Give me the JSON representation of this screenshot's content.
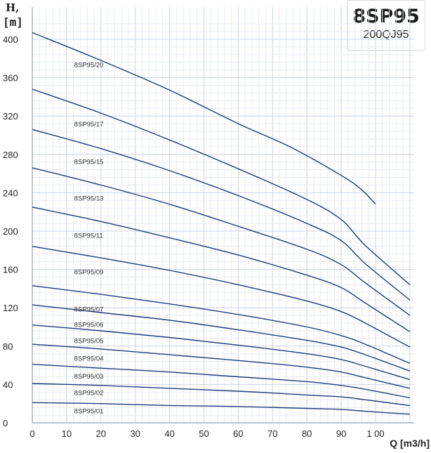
{
  "chart_data": {
    "type": "line",
    "title": "8SP95",
    "subtitle": "200QJ95",
    "ylabel_line1": "H,",
    "ylabel_line2": "[m]",
    "xlabel": "Q [m3/h]",
    "xlim": [
      0,
      110
    ],
    "ylim": [
      0,
      420
    ],
    "xticks": [
      0,
      10,
      20,
      30,
      40,
      50,
      60,
      70,
      80,
      90,
      100
    ],
    "xtick_labels": [
      "0",
      "10",
      "20",
      "30",
      "40",
      "50",
      "60",
      "70",
      "80",
      "90",
      "1 00"
    ],
    "yticks": [
      0,
      40,
      80,
      120,
      160,
      200,
      240,
      280,
      320,
      360,
      400
    ],
    "ytick_labels": [
      "0",
      "40",
      "80",
      "120",
      "160",
      "200",
      "240",
      "280",
      "320",
      "360",
      "400"
    ],
    "grid": true,
    "line_color": "#1f3c78",
    "series": [
      {
        "name": "8SP95/20",
        "x": [
          0,
          20,
          40,
          60,
          75,
          90,
          96,
          100
        ],
        "y": [
          407,
          378,
          347,
          312,
          288,
          258,
          243,
          228
        ],
        "label_at": [
          12,
          371
        ]
      },
      {
        "name": "8SP95/17",
        "x": [
          0,
          20,
          40,
          60,
          80,
          90,
          97,
          110
        ],
        "y": [
          348,
          323,
          295,
          265,
          233,
          212,
          185,
          144
        ],
        "label_at": [
          12,
          309
        ]
      },
      {
        "name": "8SP95/15",
        "x": [
          0,
          20,
          40,
          60,
          80,
          90,
          97,
          110
        ],
        "y": [
          306,
          286,
          263,
          237,
          208,
          190,
          166,
          128
        ],
        "label_at": [
          12,
          270
        ]
      },
      {
        "name": "8SP95/13",
        "x": [
          0,
          20,
          40,
          60,
          80,
          90,
          97,
          110
        ],
        "y": [
          266,
          248,
          228,
          205,
          181,
          165,
          146,
          112
        ],
        "label_at": [
          12,
          232
        ]
      },
      {
        "name": "8SP95/11",
        "x": [
          0,
          20,
          40,
          60,
          80,
          90,
          97,
          110
        ],
        "y": [
          225,
          210,
          193,
          175,
          154,
          141,
          125,
          95
        ],
        "label_at": [
          12,
          193
        ]
      },
      {
        "name": "8SP95/09",
        "x": [
          0,
          20,
          40,
          60,
          80,
          90,
          97,
          110
        ],
        "y": [
          184,
          172,
          159,
          144,
          127,
          116,
          104,
          79
        ],
        "label_at": [
          12,
          155
        ]
      },
      {
        "name": "8SP95/07",
        "x": [
          0,
          20,
          40,
          60,
          80,
          90,
          97,
          110
        ],
        "y": [
          143,
          134,
          124,
          113,
          100,
          91,
          82,
          62
        ],
        "label_at": [
          12,
          116
        ]
      },
      {
        "name": "8SP95/06",
        "x": [
          0,
          20,
          40,
          60,
          80,
          90,
          97,
          110
        ],
        "y": [
          123,
          115,
          107,
          97,
          86,
          79,
          71,
          54
        ],
        "label_at": [
          12,
          100
        ]
      },
      {
        "name": "8SP95/05",
        "x": [
          0,
          20,
          40,
          60,
          80,
          90,
          97,
          110
        ],
        "y": [
          102,
          96,
          89,
          81,
          72,
          66,
          59,
          45
        ],
        "label_at": [
          12,
          83
        ]
      },
      {
        "name": "8SP95/04",
        "x": [
          0,
          20,
          40,
          60,
          80,
          90,
          97,
          110
        ],
        "y": [
          82,
          77,
          71,
          65,
          58,
          53,
          47,
          36
        ],
        "label_at": [
          12,
          65
        ]
      },
      {
        "name": "8SP95/03",
        "x": [
          0,
          20,
          40,
          60,
          80,
          90,
          97,
          110
        ],
        "y": [
          61,
          57,
          53,
          48,
          43,
          39,
          35,
          26
        ],
        "label_at": [
          12,
          46
        ]
      },
      {
        "name": "8SP95/02",
        "x": [
          0,
          20,
          40,
          60,
          80,
          90,
          97,
          110
        ],
        "y": [
          41,
          39,
          36,
          33,
          29,
          27,
          24,
          18
        ],
        "label_at": [
          12,
          29
        ]
      },
      {
        "name": "8SP95/01",
        "x": [
          0,
          20,
          40,
          60,
          80,
          90,
          97,
          110
        ],
        "y": [
          21,
          20,
          18,
          17,
          15,
          14,
          12,
          9
        ],
        "label_at": [
          12,
          10
        ]
      }
    ]
  }
}
